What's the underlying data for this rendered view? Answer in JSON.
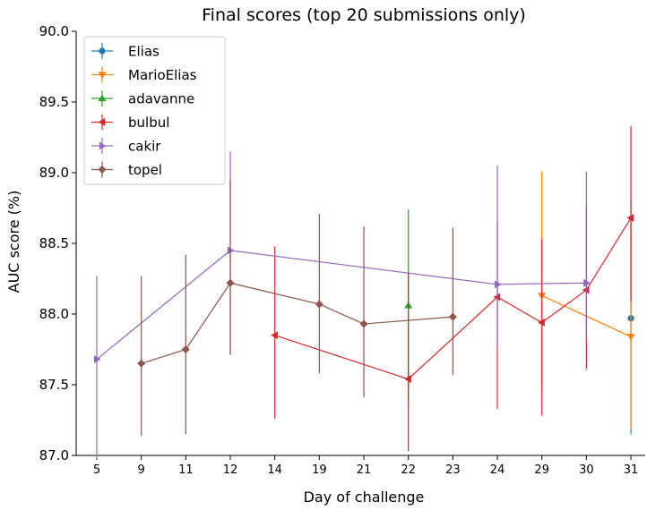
{
  "chart_data": {
    "type": "line",
    "title": "Final scores (top 20 submissions only)",
    "xlabel": "Day of challenge",
    "ylabel": "AUC score (%)",
    "ylim": [
      87.0,
      90.0
    ],
    "yticks": [
      "87.0",
      "87.5",
      "88.0",
      "88.5",
      "89.0",
      "89.5",
      "90.0"
    ],
    "categories": [
      "5",
      "9",
      "11",
      "12",
      "14",
      "19",
      "21",
      "22",
      "23",
      "24",
      "29",
      "30",
      "31"
    ],
    "legend_position": "top-left",
    "grid": false,
    "series": [
      {
        "name": "Elias",
        "color": "#1f77b4",
        "marker": "circle",
        "points": [
          {
            "x": "31",
            "y": 87.97,
            "lo": 87.15,
            "hi": 88.81
          }
        ]
      },
      {
        "name": "MarioElias",
        "color": "#ff7f0e",
        "marker": "triangle-down",
        "points": [
          {
            "x": "29",
            "y": 88.13,
            "lo": 87.48,
            "hi": 89.01
          },
          {
            "x": "31",
            "y": 87.84,
            "lo": 87.18,
            "hi": 88.66
          }
        ]
      },
      {
        "name": "adavanne",
        "color": "#2ca02c",
        "marker": "triangle-up",
        "points": [
          {
            "x": "22",
            "y": 88.06,
            "lo": 87.37,
            "hi": 88.74
          }
        ]
      },
      {
        "name": "bulbul",
        "color": "#d62728",
        "marker": "triangle-left",
        "points": [
          {
            "x": "14",
            "y": 87.85,
            "lo": 87.26,
            "hi": 88.48
          },
          {
            "x": "22",
            "y": 87.54,
            "lo": 87.03,
            "hi": 88.3
          },
          {
            "x": "24",
            "y": 88.12,
            "lo": 87.33,
            "hi": 88.66
          },
          {
            "x": "29",
            "y": 87.94,
            "lo": 87.28,
            "hi": 88.53
          },
          {
            "x": "30",
            "y": 88.17,
            "lo": 87.61,
            "hi": 88.78
          },
          {
            "x": "31",
            "y": 88.68,
            "lo": 88.09,
            "hi": 89.33
          }
        ]
      },
      {
        "name": "cakir",
        "color": "#9467bd",
        "marker": "triangle-right",
        "points": [
          {
            "x": "5",
            "y": 87.68,
            "lo": 86.96,
            "hi": 88.27
          },
          {
            "x": "12",
            "y": 88.45,
            "lo": 87.72,
            "hi": 89.15
          },
          {
            "x": "24",
            "y": 88.21,
            "lo": 87.77,
            "hi": 89.05
          },
          {
            "x": "30",
            "y": 88.22,
            "lo": 87.82,
            "hi": 89.01
          }
        ]
      },
      {
        "name": "topel",
        "color": "#8c564b",
        "marker": "diamond",
        "points": [
          {
            "x": "9",
            "y": 87.65,
            "lo": 87.14,
            "hi": 88.27
          },
          {
            "x": "11",
            "y": 87.75,
            "lo": 87.15,
            "hi": 88.42
          },
          {
            "x": "12",
            "y": 88.22,
            "lo": 87.71,
            "hi": 88.95
          },
          {
            "x": "19",
            "y": 88.07,
            "lo": 87.58,
            "hi": 88.71
          },
          {
            "x": "21",
            "y": 87.93,
            "lo": 87.41,
            "hi": 88.62
          },
          {
            "x": "23",
            "y": 87.98,
            "lo": 87.57,
            "hi": 88.61
          }
        ]
      }
    ]
  }
}
